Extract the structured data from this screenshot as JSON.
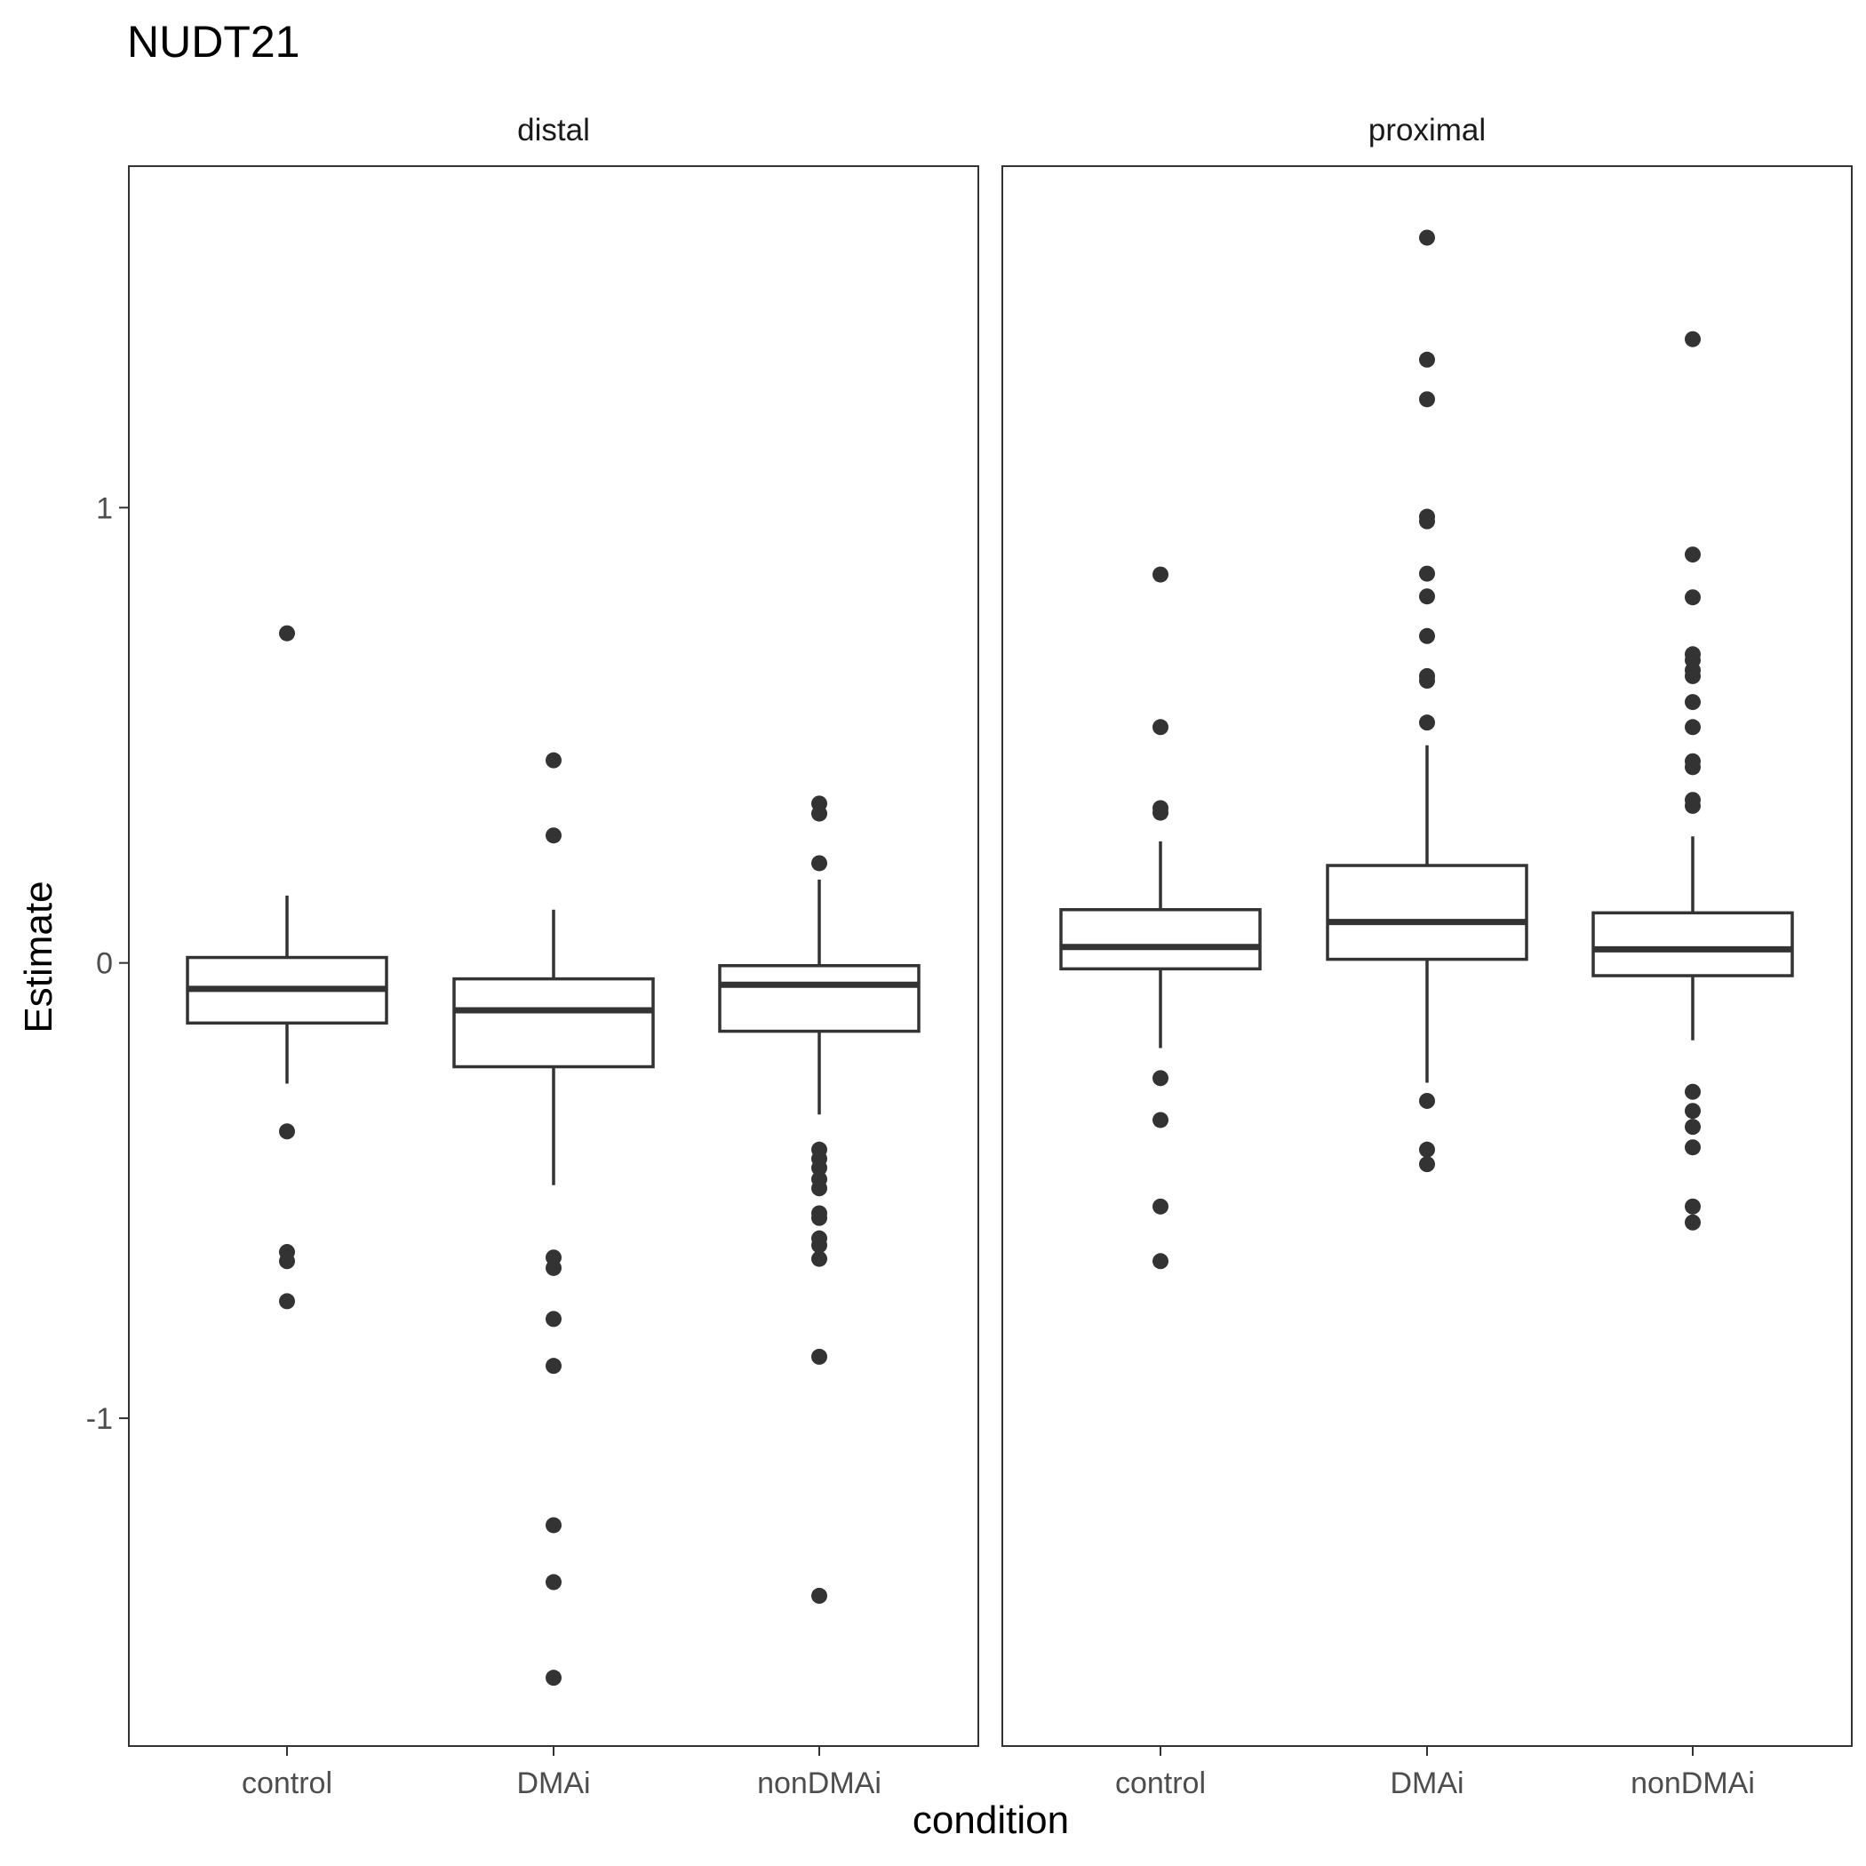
{
  "chart_data": {
    "type": "boxplot",
    "title": "NUDT21",
    "xlabel": "condition",
    "ylabel": "Estimate",
    "ylim": [
      -1.72,
      1.75
    ],
    "y_ticks": [
      1,
      0,
      -1
    ],
    "y_tick_labels": [
      "1",
      "0",
      "-1"
    ],
    "categories": [
      "control",
      "DMAi",
      "nonDMAi"
    ],
    "colors": {
      "box": "#333333",
      "panel_border": "#333333",
      "background": "#ffffff"
    },
    "panels": [
      {
        "strip": "distal",
        "boxes": [
          {
            "category": "control",
            "whisker_low": -0.265,
            "q1": -0.132,
            "median": -0.057,
            "q3": 0.012,
            "whisker_high": 0.148,
            "outliers": [
              0.724,
              -0.37,
              -0.635,
              -0.655,
              -0.743
            ]
          },
          {
            "category": "DMAi",
            "whisker_low": -0.488,
            "q1": -0.228,
            "median": -0.104,
            "q3": -0.035,
            "whisker_high": 0.117,
            "outliers": [
              0.445,
              0.28,
              -0.647,
              -0.67,
              -0.782,
              -0.885,
              -1.235,
              -1.36,
              -1.57
            ]
          },
          {
            "category": "nonDMAi",
            "whisker_low": -0.333,
            "q1": -0.15,
            "median": -0.048,
            "q3": -0.006,
            "whisker_high": 0.183,
            "outliers": [
              0.35,
              0.328,
              0.219,
              -0.41,
              -0.43,
              -0.45,
              -0.475,
              -0.495,
              -0.55,
              -0.56,
              -0.605,
              -0.62,
              -0.65,
              -0.865,
              -1.39
            ]
          }
        ]
      },
      {
        "strip": "proximal",
        "boxes": [
          {
            "category": "control",
            "whisker_low": -0.187,
            "q1": -0.013,
            "median": 0.035,
            "q3": 0.117,
            "whisker_high": 0.267,
            "outliers": [
              0.853,
              0.518,
              0.34,
              0.33,
              -0.253,
              -0.345,
              -0.535,
              -0.655
            ]
          },
          {
            "category": "DMAi",
            "whisker_low": -0.263,
            "q1": 0.008,
            "median": 0.09,
            "q3": 0.214,
            "whisker_high": 0.478,
            "outliers": [
              1.593,
              1.325,
              1.238,
              0.98,
              0.97,
              0.855,
              0.805,
              0.718,
              0.63,
              0.62,
              0.528,
              -0.303,
              -0.41,
              -0.442
            ]
          },
          {
            "category": "nonDMAi",
            "whisker_low": -0.17,
            "q1": -0.028,
            "median": 0.03,
            "q3": 0.11,
            "whisker_high": 0.278,
            "outliers": [
              1.37,
              0.897,
              0.803,
              0.678,
              0.665,
              0.643,
              0.63,
              0.573,
              0.518,
              0.443,
              0.43,
              0.358,
              0.345,
              -0.283,
              -0.325,
              -0.36,
              -0.405,
              -0.535,
              -0.57
            ]
          }
        ]
      }
    ]
  }
}
